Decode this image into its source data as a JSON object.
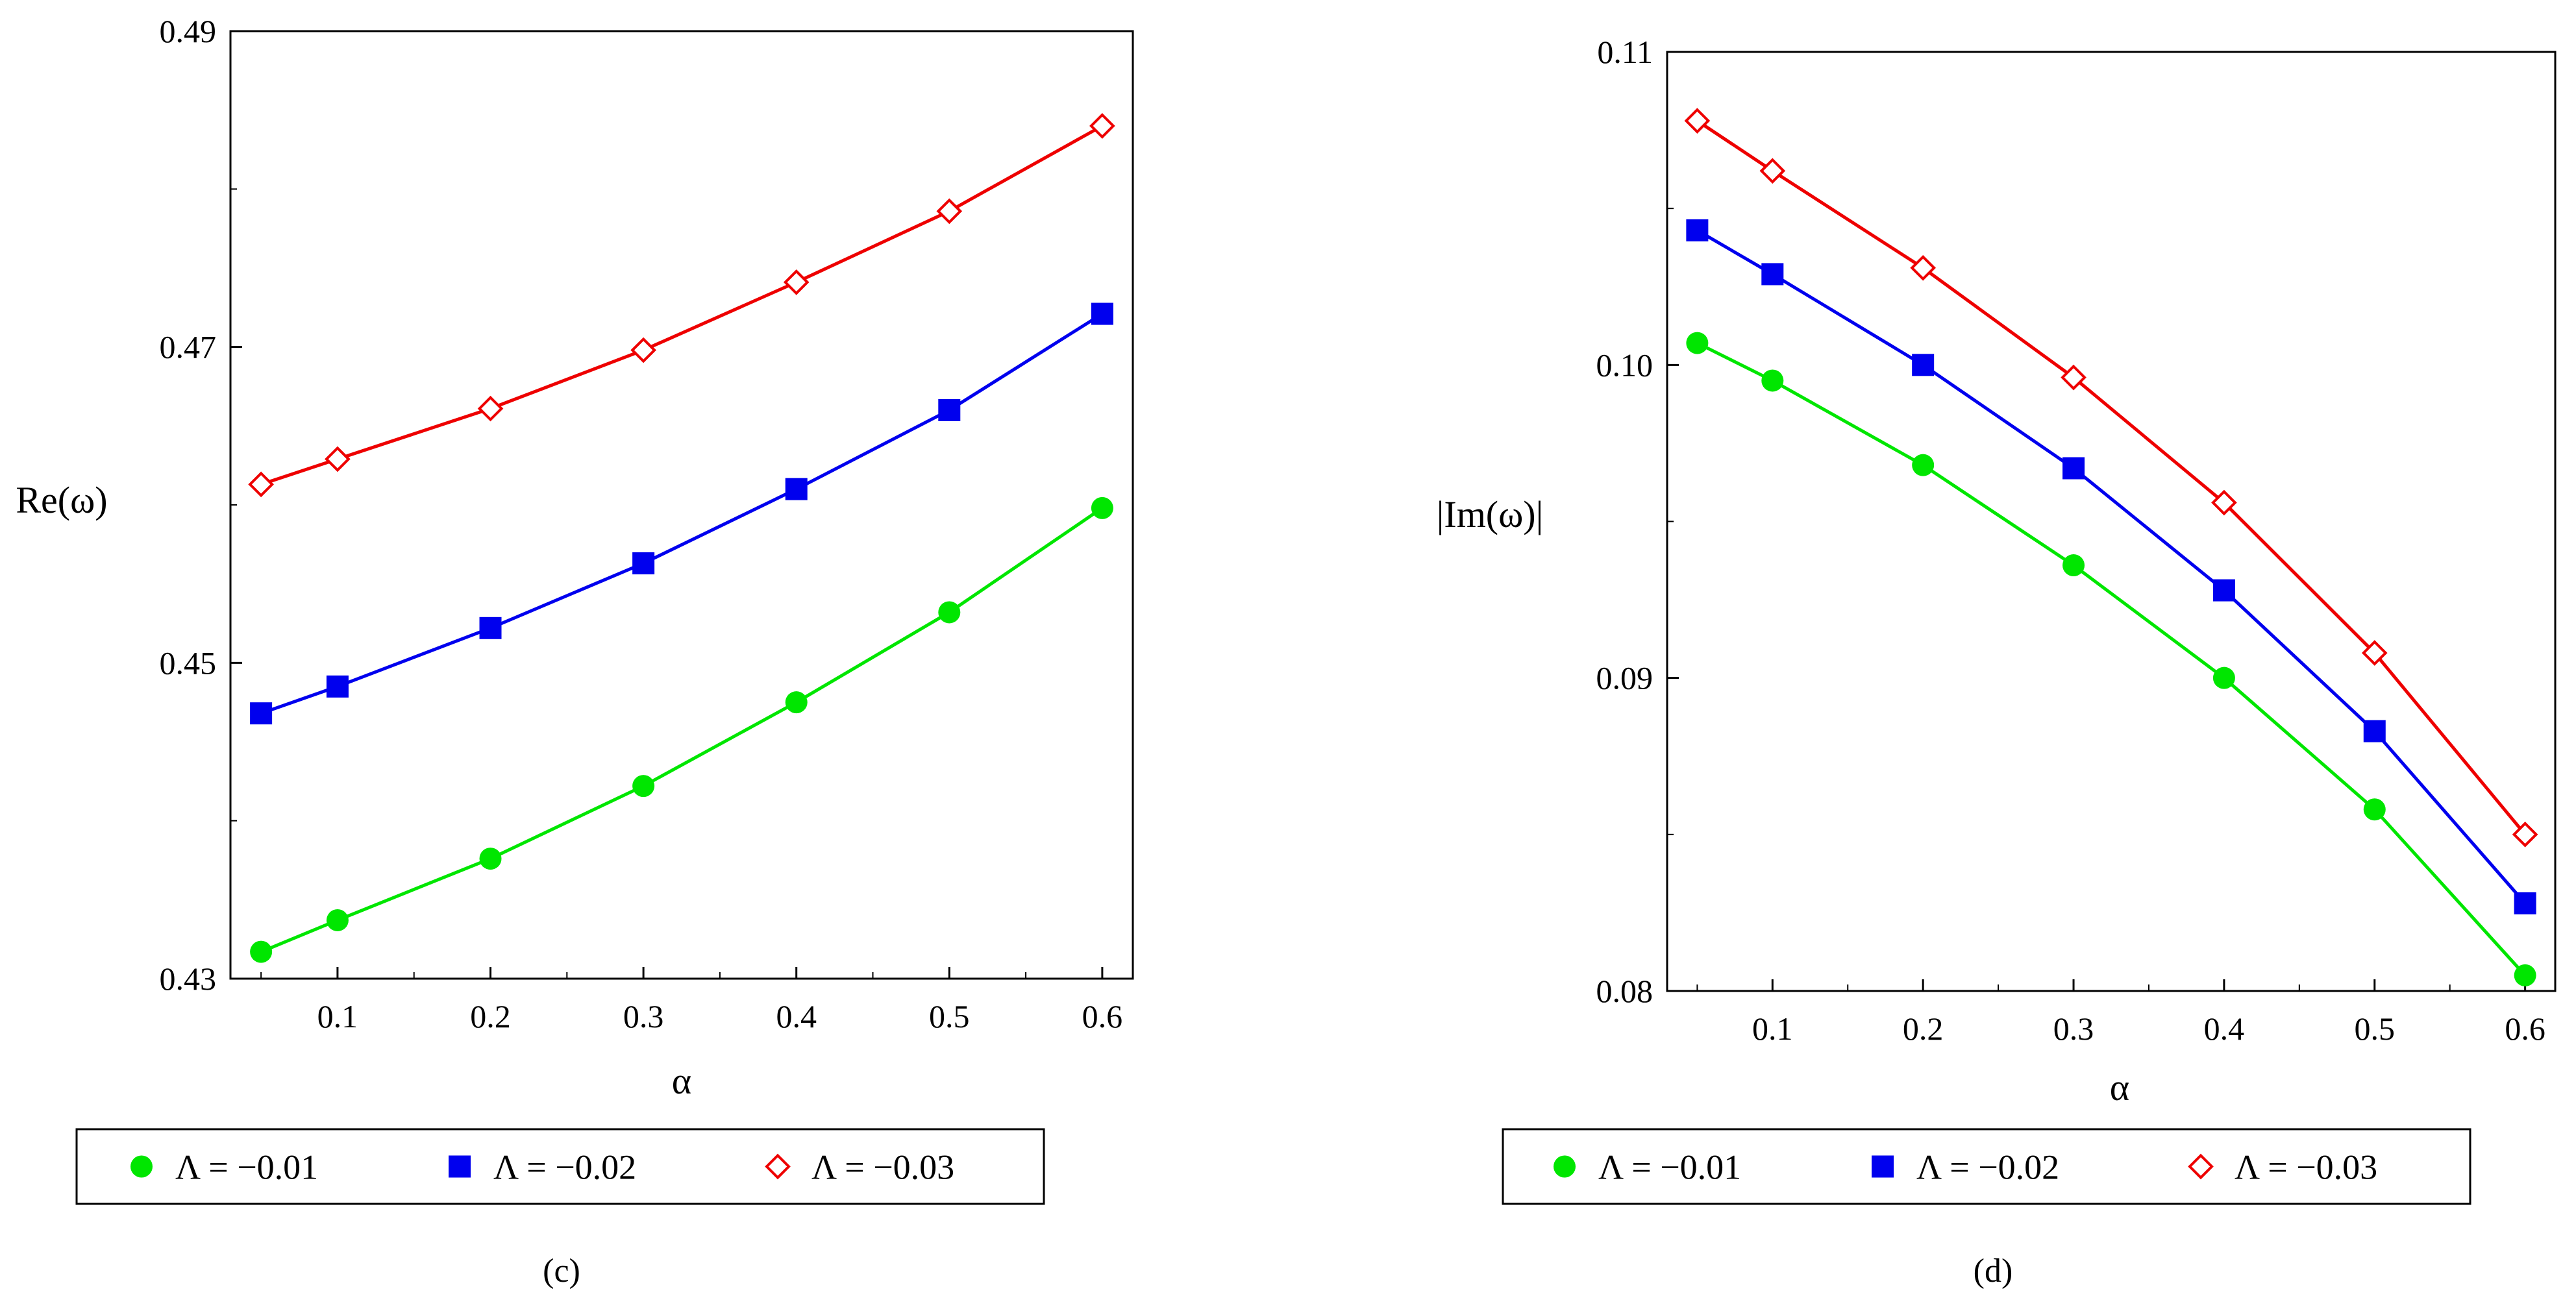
{
  "colors": {
    "green": "#00e600",
    "blue": "#0000ee",
    "red": "#ee0000",
    "axis": "#000000"
  },
  "chart_data": [
    {
      "id": "c",
      "type": "line",
      "caption": "(c)",
      "xlabel": "α",
      "ylabel": "Re(ω)",
      "xlim": [
        0.03,
        0.62
      ],
      "ylim": [
        0.43,
        0.49
      ],
      "xticks": [
        "0.1",
        "0.2",
        "0.3",
        "0.4",
        "0.5",
        "0.6"
      ],
      "yticks": [
        "0.43",
        "0.45",
        "0.47",
        "0.49"
      ],
      "x": [
        0.05,
        0.1,
        0.2,
        0.3,
        0.4,
        0.5,
        0.6
      ],
      "series": [
        {
          "name": "Λ = −0.01",
          "marker": "circle",
          "color": "#00e600",
          "values": [
            0.4317,
            0.4337,
            0.4376,
            0.4422,
            0.4475,
            0.4532,
            0.4598
          ]
        },
        {
          "name": "Λ = −0.02",
          "marker": "square",
          "color": "#0000ee",
          "values": [
            0.4468,
            0.4485,
            0.4522,
            0.4563,
            0.461,
            0.466,
            0.4721
          ]
        },
        {
          "name": "Λ = −0.03",
          "marker": "diamond",
          "color": "#ee0000",
          "values": [
            0.4613,
            0.4629,
            0.4661,
            0.4698,
            0.4741,
            0.4786,
            0.484
          ]
        }
      ]
    },
    {
      "id": "d",
      "type": "line",
      "caption": "(d)",
      "xlabel": "α",
      "ylabel": "|Im(ω)|",
      "xlim": [
        0.03,
        0.62
      ],
      "ylim": [
        0.08,
        0.11
      ],
      "xticks": [
        "0.1",
        "0.2",
        "0.3",
        "0.4",
        "0.5",
        "0.6"
      ],
      "yticks": [
        "0.08",
        "0.09",
        "0.10",
        "0.11"
      ],
      "x": [
        0.05,
        0.1,
        0.2,
        0.3,
        0.4,
        0.5,
        0.6
      ],
      "series": [
        {
          "name": "Λ = −0.01",
          "marker": "circle",
          "color": "#00e600",
          "values": [
            0.1007,
            0.0995,
            0.0968,
            0.0936,
            0.09,
            0.0858,
            0.0805
          ]
        },
        {
          "name": "Λ = −0.02",
          "marker": "square",
          "color": "#0000ee",
          "values": [
            0.1043,
            0.1029,
            0.1,
            0.0967,
            0.0928,
            0.0883,
            0.0828
          ]
        },
        {
          "name": "Λ = −0.03",
          "marker": "diamond",
          "color": "#ee0000",
          "values": [
            0.1078,
            0.1062,
            0.1031,
            0.0996,
            0.0956,
            0.0908,
            0.085
          ]
        }
      ]
    }
  ]
}
